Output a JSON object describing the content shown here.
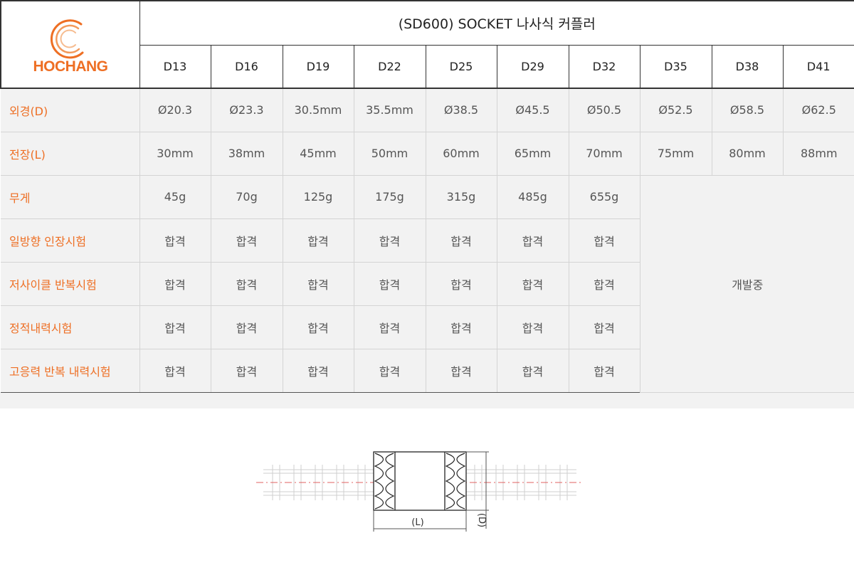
{
  "brand": {
    "name": "HOCHANG",
    "color": "#ee6f24"
  },
  "title": "(SD600) SOCKET 나사식 커플러",
  "columns": [
    "D13",
    "D16",
    "D19",
    "D22",
    "D25",
    "D29",
    "D32",
    "D35",
    "D38",
    "D41"
  ],
  "rows": [
    {
      "label": "외경(D)",
      "values": [
        "Ø20.3",
        "Ø23.3",
        "30.5mm",
        "35.5mm",
        "Ø38.5",
        "Ø45.5",
        "Ø50.5",
        "Ø52.5",
        "Ø58.5",
        "Ø62.5"
      ]
    },
    {
      "label": "전장(L)",
      "values": [
        "30mm",
        "38mm",
        "45mm",
        "50mm",
        "60mm",
        "65mm",
        "70mm",
        "75mm",
        "80mm",
        "88mm"
      ]
    },
    {
      "label": "무게",
      "values": [
        "45g",
        "70g",
        "125g",
        "175g",
        "315g",
        "485g",
        "655g"
      ]
    },
    {
      "label": "일방향 인장시험",
      "values": [
        "합격",
        "합격",
        "합격",
        "합격",
        "합격",
        "합격",
        "합격"
      ]
    },
    {
      "label": "저사이클 반복시험",
      "values": [
        "합격",
        "합격",
        "합격",
        "합격",
        "합격",
        "합격",
        "합격"
      ]
    },
    {
      "label": "정적내력시험",
      "values": [
        "합격",
        "합격",
        "합격",
        "합격",
        "합격",
        "합격",
        "합격"
      ]
    },
    {
      "label": "고응력 반복 내력시험",
      "values": [
        "합격",
        "합격",
        "합격",
        "합격",
        "합격",
        "합격",
        "합격"
      ]
    }
  ],
  "in_development": "개발중",
  "drawing": {
    "length_label": "(L)",
    "diameter_label": "(D)"
  },
  "colors": {
    "label_orange": "#ee6f24",
    "row_bg": "#f2f2f2",
    "center_line": "#e06060"
  }
}
